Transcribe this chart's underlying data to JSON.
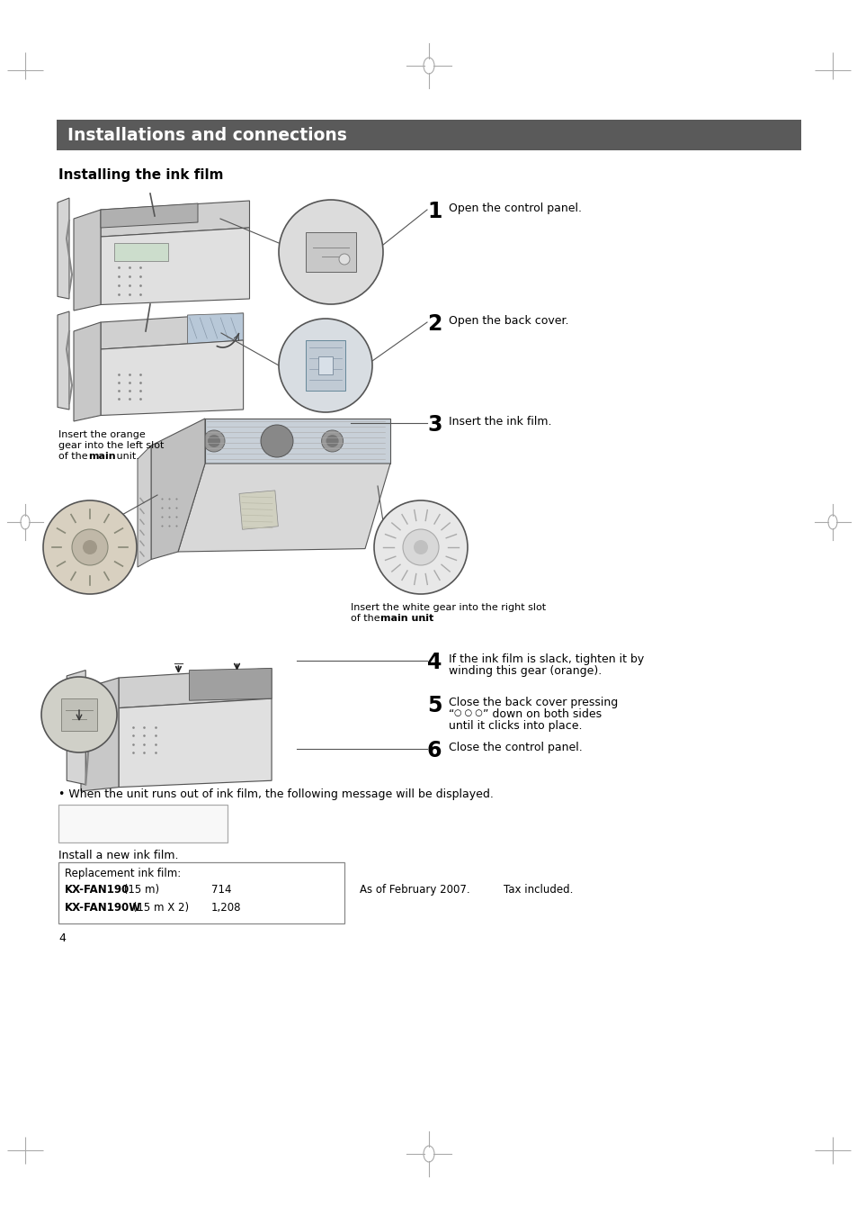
{
  "page_bg": "#ffffff",
  "header_bg": "#5a5a5a",
  "header_text": "Installations and connections",
  "header_text_color": "#ffffff",
  "header_font_size": 13.5,
  "section_title": "Installing the ink film",
  "section_title_font_size": 11,
  "step1_num": "1",
  "step1_text": "Open the control panel.",
  "step2_num": "2",
  "step2_text": "Open the back cover.",
  "step3_num": "3",
  "step3_text": "Insert the ink film.",
  "step3_note_left_line1": "Insert the orange",
  "step3_note_left_line2": "gear into the left slot",
  "step3_note_left_line3": "of the ",
  "step3_note_left_line3b": "main",
  "step3_note_left_line3c": " unit.",
  "step3_note_right_line1": "Insert the white gear into the right slot",
  "step3_note_right_line2": "of the ",
  "step3_note_right_line2b": "main unit",
  "step3_note_right_line2c": ".",
  "step4_num": "4",
  "step4_text_line1": "If the ink film is slack, tighten it by",
  "step4_text_line2": "winding this gear (orange).",
  "step5_num": "5",
  "step5_text_line1": "Close the back cover pressing",
  "step5_text_line2_pre": "“",
  "step5_circles": "○ ○ ○",
  "step5_text_line2_post": "” down on both sides",
  "step5_text_line3": "until it clicks into place.",
  "step6_num": "6",
  "step6_text": "Close the control panel.",
  "bullet_note": "• When the unit runs out of ink film, the following message will be displayed.",
  "install_text": "Install a new ink film.",
  "replacement_header": "Replacement ink film:",
  "item1_name": "KX-FAN190",
  "item1_spec": " (15 m)",
  "item1_price": "714",
  "item2_name": "KX-FAN190W",
  "item2_spec": " (15 m X 2)",
  "item2_price": "1,208",
  "footnote1": "As of February 2007.",
  "footnote2": "Tax included.",
  "page_num": "4",
  "text_color": "#000000",
  "line_color": "#444444",
  "fax_body_color": "#d8d8d8",
  "fax_edge_color": "#555555",
  "fax_dark_color": "#aaaaaa",
  "fax_panel_color": "#b8b8b8"
}
